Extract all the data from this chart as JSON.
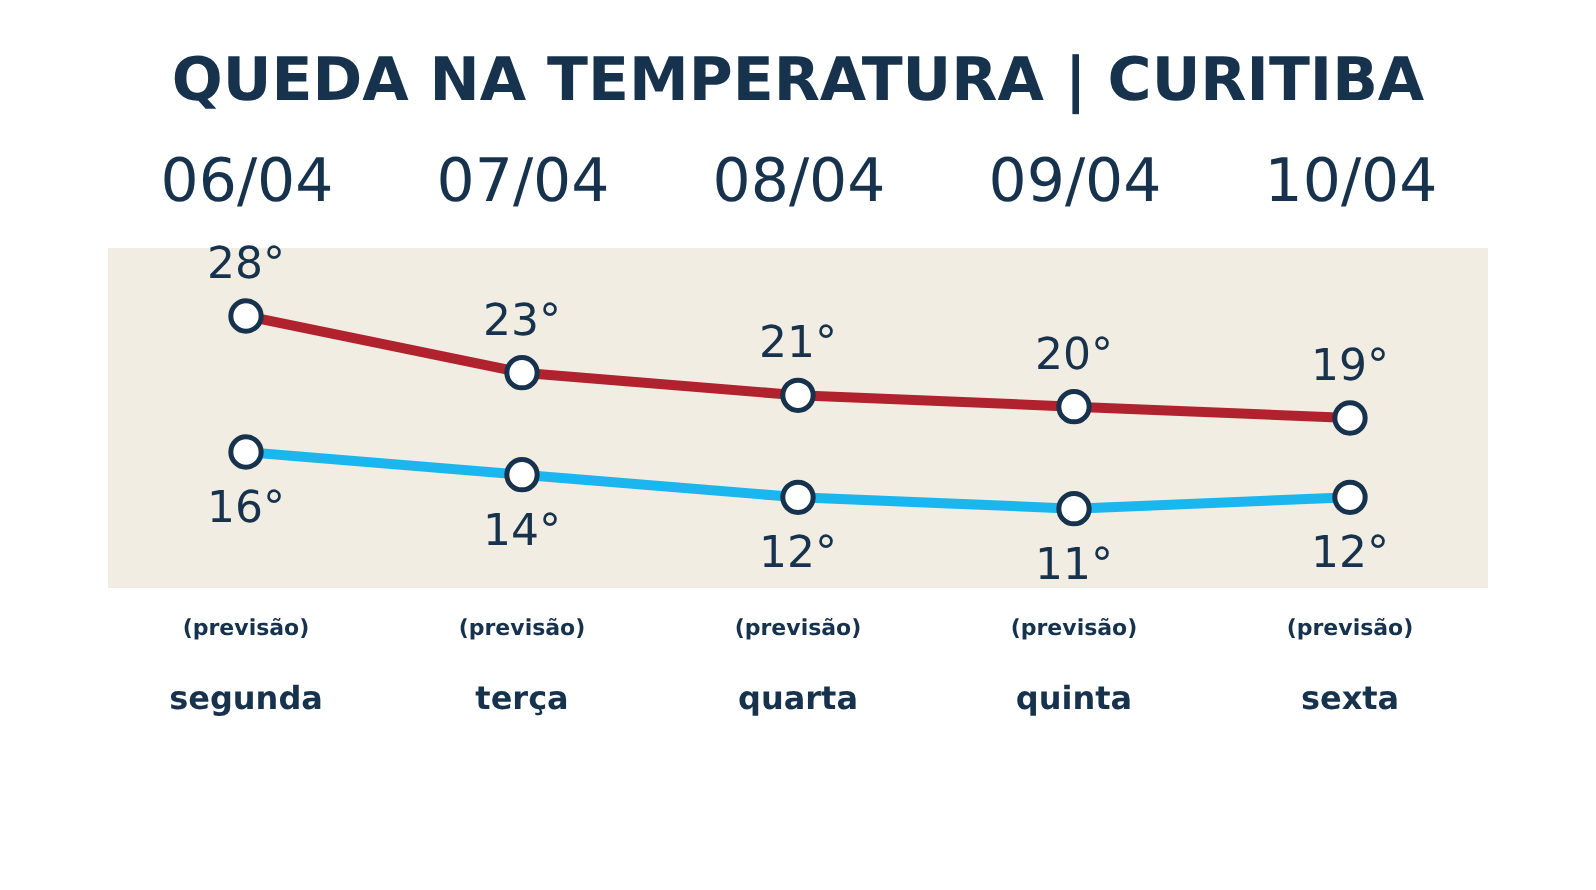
{
  "chart_data": {
    "type": "line",
    "title": "QUEDA NA TEMPERATURA | CURITIBA",
    "categories": [
      "06/04",
      "07/04",
      "08/04",
      "09/04",
      "10/04"
    ],
    "series": [
      {
        "color": "#b0222e",
        "values": [
          28,
          23,
          21,
          20,
          19
        ],
        "value_labels": [
          "28°",
          "23°",
          "21°",
          "20°",
          "19°"
        ]
      },
      {
        "color": "#1cb6ee",
        "values": [
          16,
          14,
          12,
          11,
          12
        ],
        "value_labels": [
          "16°",
          "14°",
          "12°",
          "11°",
          "12°"
        ]
      }
    ],
    "annotations": [
      "(previsão)",
      "(previsão)",
      "(previsão)",
      "(previsão)",
      "(previsão)",
      "segunda",
      "terça",
      "quarta",
      "quinta",
      "sexta"
    ],
    "marker": "circle",
    "grid": false,
    "legend": false
  }
}
